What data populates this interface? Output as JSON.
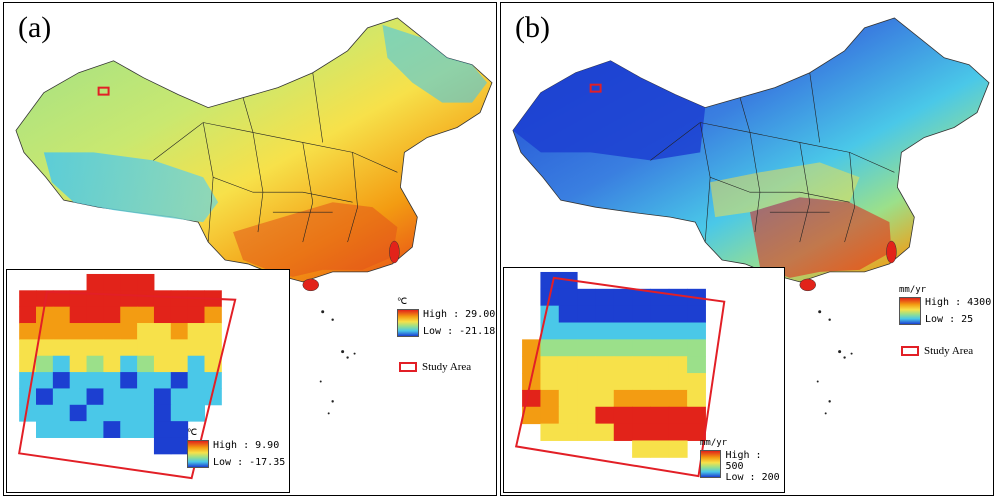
{
  "panels": {
    "a": {
      "label": "(a)",
      "legend": {
        "unit": "℃",
        "high_label": "High : 29.00",
        "low_label": "Low : -21.18"
      },
      "study_area_label": "Study Area",
      "inset_legend": {
        "unit": "℃",
        "high_label": "High : 9.90",
        "low_label": "Low : -17.35"
      }
    },
    "b": {
      "label": "(b)",
      "legend": {
        "unit": "mm/yr",
        "high_label": "High : 4300",
        "low_label": "Low : 25"
      },
      "study_area_label": "Study Area",
      "inset_legend": {
        "unit": "mm/yr",
        "high_label": "High : 500",
        "low_label": "Low : 200"
      }
    }
  },
  "colors": {
    "high": "#e2231a",
    "orange": "#f39c12",
    "yellow": "#f7e14a",
    "green": "#9be08a",
    "cyan": "#4ac8e8",
    "low": "#1c3fd1",
    "study_box": "#e21f26",
    "border": "#000000"
  },
  "inset_grids": {
    "a": [
      "....RRRR.....",
      "RRRRRRRRRRRR.",
      "ROORRROORRRO.",
      "OOOOOOOYYOYY.",
      "YYYYYYYYYYYY.",
      "YGCYGYCGYYCY.",
      "CCBCCCBCCBCC.",
      "CBCCBCCCBCCC.",
      "CCCBCCCCBCC..",
      ".CCCCBCCBB...",
      "........BB..."
    ],
    "b": [
      ".BB.........",
      ".BBBBBBBBB..",
      ".CBBBBBBBB..",
      ".CCCCCCCCC..",
      "OGGGGGGGGG..",
      "OYYYYYYYYG..",
      "OYYYYYYYYY..",
      "ROYYYOOOOY..",
      "OOYYRRRRRR..",
      ".YYYYRRRRR..",
      "......YYY..."
    ]
  }
}
